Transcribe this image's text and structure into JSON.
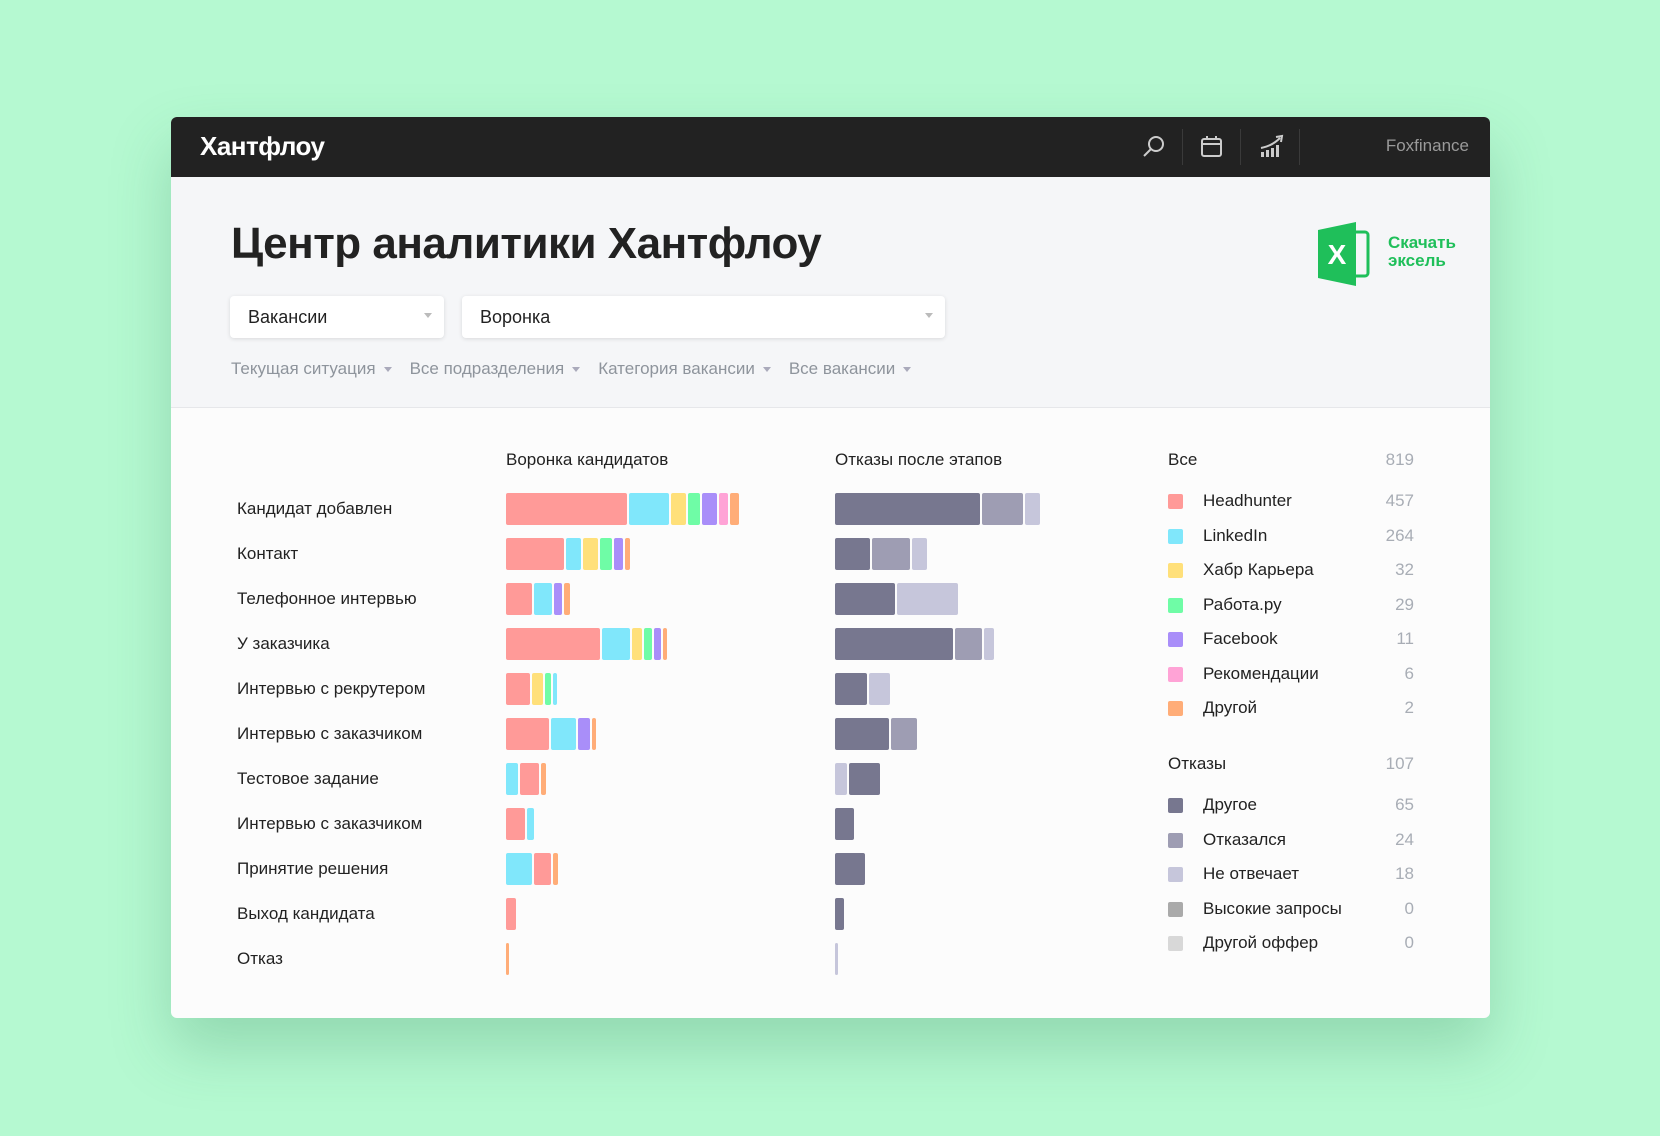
{
  "topbar": {
    "logo": "Хантфлоу",
    "account": "Foxfinance",
    "icons": [
      "search-icon",
      "calendar-icon",
      "analytics-icon"
    ]
  },
  "hero": {
    "title": "Центр аналитики Хантфлоу",
    "select_entity": "Вакансии",
    "select_report": "Воронка",
    "filters": [
      "Текущая ситуация",
      "Все подразделения",
      "Категория вакансии",
      "Все вакансии"
    ],
    "download_line1": "Скачать",
    "download_line2": "эксель",
    "excel_color": "#1fbf5a"
  },
  "chart_data": {
    "type": "bar",
    "orientation": "horizontal-stacked",
    "funnel_title": "Воронка кандидатов",
    "rejections_title": "Отказы после этапов",
    "categories": [
      "Кандидат добавлен",
      "Контакт",
      "Телефонное интервью",
      "У заказчика",
      "Интервью с рекрутером",
      "Интервью с заказчиком",
      "Тестовое задание",
      "Интервью с заказчиком",
      "Принятие решения",
      "Выход кандидата",
      "Отказ"
    ],
    "funnel": [
      [
        [
          "hh",
          448
        ],
        [
          "li",
          148
        ],
        [
          "habr",
          56
        ],
        [
          "rabota",
          44
        ],
        [
          "fb",
          56
        ],
        [
          "rec",
          33
        ],
        [
          "other",
          33
        ]
      ],
      [
        [
          "hh",
          215
        ],
        [
          "li",
          56
        ],
        [
          "habr",
          56
        ],
        [
          "rabota",
          44
        ],
        [
          "fb",
          33
        ],
        [
          "other",
          19
        ]
      ],
      [
        [
          "hh",
          96
        ],
        [
          "li",
          67
        ],
        [
          "fb",
          30
        ],
        [
          "other",
          22
        ]
      ],
      [
        [
          "hh",
          348
        ],
        [
          "li",
          104
        ],
        [
          "habr",
          37
        ],
        [
          "rabota",
          30
        ],
        [
          "fb",
          26
        ],
        [
          "other",
          15
        ]
      ],
      [
        [
          "hh",
          89
        ],
        [
          "habr",
          41
        ],
        [
          "rabota",
          22
        ],
        [
          "li",
          15
        ]
      ],
      [
        [
          "hh",
          159
        ],
        [
          "li",
          93
        ],
        [
          "fb",
          44
        ],
        [
          "other",
          15
        ]
      ],
      [
        [
          "li",
          44
        ],
        [
          "hh",
          70
        ],
        [
          "other",
          19
        ]
      ],
      [
        [
          "hh",
          70
        ],
        [
          "li",
          26
        ]
      ],
      [
        [
          "li",
          96
        ],
        [
          "hh",
          63
        ],
        [
          "other",
          19
        ]
      ],
      [
        [
          "hh",
          37
        ]
      ],
      [
        [
          "other",
          11
        ]
      ]
    ],
    "rejections": [
      [
        [
          "r_other",
          537
        ],
        [
          "r_refused",
          152
        ],
        [
          "r_noanswer",
          56
        ]
      ],
      [
        [
          "r_other",
          130
        ],
        [
          "r_refused",
          141
        ],
        [
          "r_noanswer",
          56
        ]
      ],
      [
        [
          "r_other",
          222
        ],
        [
          "r_noanswer",
          226
        ]
      ],
      [
        [
          "r_other",
          437
        ],
        [
          "r_refused",
          100
        ],
        [
          "r_noanswer",
          37
        ]
      ],
      [
        [
          "r_other",
          118
        ],
        [
          "r_noanswer",
          78
        ]
      ],
      [
        [
          "r_other",
          200
        ],
        [
          "r_refused",
          96
        ]
      ],
      [
        [
          "r_noanswer",
          44
        ],
        [
          "r_other",
          115
        ]
      ],
      [
        [
          "r_other",
          70
        ]
      ],
      [
        [
          "r_other",
          111
        ]
      ],
      [
        [
          "r_other",
          33
        ]
      ],
      [
        [
          "r_noanswer",
          11
        ]
      ]
    ]
  },
  "legend": {
    "all_label": "Все",
    "all_total": "819",
    "sources": [
      {
        "key": "hh",
        "label": "Headhunter",
        "count": "457",
        "color": "#ff9a98"
      },
      {
        "key": "li",
        "label": "LinkedIn",
        "count": "264",
        "color": "#80e7fb"
      },
      {
        "key": "habr",
        "label": "Хабр Карьера",
        "count": "32",
        "color": "#ffe07a"
      },
      {
        "key": "rabota",
        "label": "Работа.ру",
        "count": "29",
        "color": "#6ffca6"
      },
      {
        "key": "fb",
        "label": "Facebook",
        "count": "11",
        "color": "#a98ef9"
      },
      {
        "key": "rec",
        "label": "Рекомендации",
        "count": "6",
        "color": "#ffa3d6"
      },
      {
        "key": "other",
        "label": "Другой",
        "count": "2",
        "color": "#ffad78"
      }
    ],
    "rej_label": "Отказы",
    "rej_total": "107",
    "reasons": [
      {
        "key": "r_other",
        "label": "Другое",
        "count": "65",
        "color": "#77778f"
      },
      {
        "key": "r_refused",
        "label": "Отказался",
        "count": "24",
        "color": "#9e9db3"
      },
      {
        "key": "r_noanswer",
        "label": "Не отвечает",
        "count": "18",
        "color": "#c6c6db"
      },
      {
        "key": "r_high",
        "label": "Высокие запросы",
        "count": "0",
        "color": "#aaaaaa"
      },
      {
        "key": "r_offer",
        "label": "Другой оффер",
        "count": "0",
        "color": "#d8d8d8"
      }
    ]
  }
}
